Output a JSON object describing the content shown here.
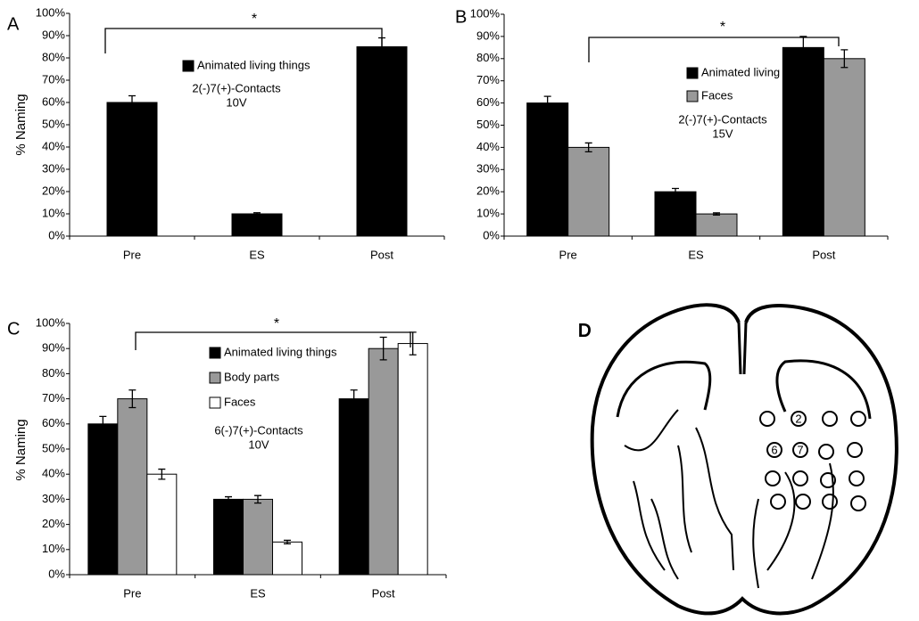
{
  "chart_data": [
    {
      "type": "bar",
      "panel": "A",
      "ylabel": "% Naming",
      "categories": [
        "Pre",
        "ES",
        "Post"
      ],
      "series": [
        {
          "name": "Animated living things",
          "color": "#000000",
          "values": [
            60,
            10,
            85
          ],
          "errors": [
            3,
            0.5,
            4
          ]
        }
      ],
      "ylim": [
        0,
        100
      ],
      "yticks": [
        {
          "value": 0,
          "label": "0%"
        },
        {
          "value": 10,
          "label": "10%"
        },
        {
          "value": 20,
          "label": "20%"
        },
        {
          "value": 30,
          "label": "30%"
        },
        {
          "value": 40,
          "label": "40%"
        },
        {
          "value": 50,
          "label": "50%"
        },
        {
          "value": 60,
          "label": "60%"
        },
        {
          "value": 70,
          "label": "70%"
        },
        {
          "value": 80,
          "label": "80%"
        },
        {
          "value": 90,
          "label": "90%"
        },
        {
          "value": 100,
          "label": "100%"
        }
      ],
      "annotations": [
        "2(-)7(+)-Contacts",
        "10V"
      ],
      "significance": "*"
    },
    {
      "type": "bar",
      "panel": "B",
      "categories": [
        "Pre",
        "ES",
        "Post"
      ],
      "series": [
        {
          "name": "Animated living things",
          "color": "#000000",
          "values": [
            60,
            20,
            85
          ],
          "errors": [
            3,
            1.5,
            5
          ]
        },
        {
          "name": "Faces",
          "color": "#999999",
          "values": [
            40,
            10,
            80
          ],
          "errors": [
            2,
            0.5,
            4
          ]
        }
      ],
      "ylim": [
        0,
        100
      ],
      "yticks": [
        {
          "value": 0,
          "label": "0%"
        },
        {
          "value": 10,
          "label": "10%"
        },
        {
          "value": 20,
          "label": "20%"
        },
        {
          "value": 30,
          "label": "30%"
        },
        {
          "value": 40,
          "label": "40%"
        },
        {
          "value": 50,
          "label": "50%"
        },
        {
          "value": 60,
          "label": "60%"
        },
        {
          "value": 70,
          "label": "70%"
        },
        {
          "value": 80,
          "label": "80%"
        },
        {
          "value": 90,
          "label": "90%"
        },
        {
          "value": 100,
          "label": "100%"
        }
      ],
      "annotations": [
        "2(-)7(+)-Contacts",
        "15V"
      ],
      "significance": "*"
    },
    {
      "type": "bar",
      "panel": "C",
      "ylabel": "% Naming",
      "categories": [
        "Pre",
        "ES",
        "Post"
      ],
      "series": [
        {
          "name": "Animated living things",
          "color": "#000000",
          "values": [
            60,
            30,
            70
          ],
          "errors": [
            3,
            1,
            3.5
          ]
        },
        {
          "name": "Body parts",
          "color": "#999999",
          "values": [
            70,
            30,
            90
          ],
          "errors": [
            3.5,
            1.5,
            4.5
          ]
        },
        {
          "name": "Faces",
          "color": "#ffffff",
          "values": [
            40,
            13,
            92
          ],
          "errors": [
            2,
            0.7,
            4.5
          ]
        }
      ],
      "ylim": [
        0,
        100
      ],
      "yticks": [
        {
          "value": 0,
          "label": "0%"
        },
        {
          "value": 10,
          "label": "10%"
        },
        {
          "value": 20,
          "label": "20%"
        },
        {
          "value": 30,
          "label": "30%"
        },
        {
          "value": 40,
          "label": "40%"
        },
        {
          "value": 50,
          "label": "50%"
        },
        {
          "value": 60,
          "label": "60%"
        },
        {
          "value": 70,
          "label": "70%"
        },
        {
          "value": 80,
          "label": "80%"
        },
        {
          "value": 90,
          "label": "90%"
        },
        {
          "value": 100,
          "label": "100%"
        }
      ],
      "annotations": [
        "6(-)7(+)-Contacts",
        "10V"
      ],
      "significance": "*"
    }
  ],
  "diagram": {
    "panel": "D",
    "electrode_labels": [
      "2",
      "6",
      "7"
    ]
  }
}
